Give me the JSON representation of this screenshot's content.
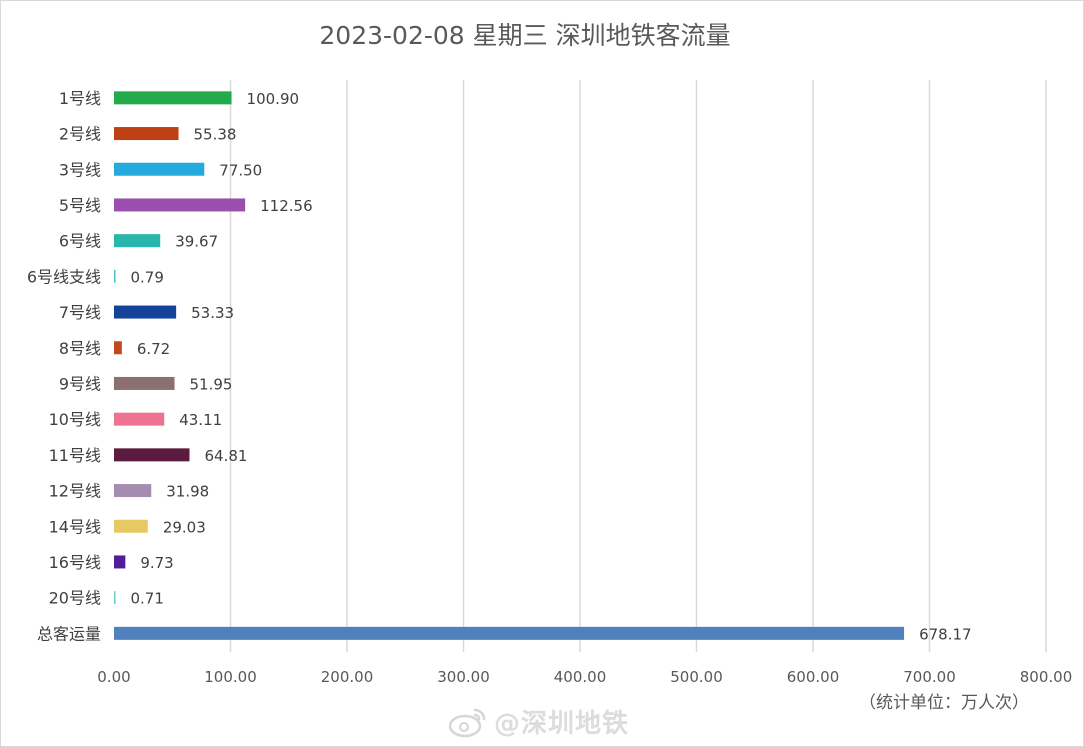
{
  "chart_data": {
    "type": "bar",
    "orientation": "horizontal",
    "title": "2023-02-08 星期三 深圳地铁客流量",
    "unit_note": "（统计单位：万人次）",
    "categories": [
      "1号线",
      "2号线",
      "3号线",
      "5号线",
      "6号线",
      "6号线支线",
      "7号线",
      "8号线",
      "9号线",
      "10号线",
      "11号线",
      "12号线",
      "14号线",
      "16号线",
      "20号线",
      "总客运量"
    ],
    "values": [
      100.9,
      55.38,
      77.5,
      112.56,
      39.67,
      0.79,
      53.33,
      6.72,
      51.95,
      43.11,
      64.81,
      31.98,
      29.03,
      9.73,
      0.71,
      678.17
    ],
    "value_labels": [
      "100.90",
      "55.38",
      "77.50",
      "112.56",
      "39.67",
      "0.79",
      "53.33",
      "6.72",
      "51.95",
      "43.11",
      "64.81",
      "31.98",
      "29.03",
      "9.73",
      "0.71",
      "678.17"
    ],
    "colors": [
      "#22ab4a",
      "#be4116",
      "#25aade",
      "#9a4fae",
      "#2ab7ab",
      "#4fc2d0",
      "#15439a",
      "#c04a1b",
      "#8b6f71",
      "#ee7392",
      "#5b1a3e",
      "#a58db2",
      "#e8c862",
      "#4e1e9b",
      "#6fc8d3",
      "#4f81bd"
    ],
    "xlim": [
      0,
      800
    ],
    "xticks": [
      0,
      100,
      200,
      300,
      400,
      500,
      600,
      700,
      800
    ],
    "xtick_labels": [
      "0.00",
      "100.00",
      "200.00",
      "300.00",
      "400.00",
      "500.00",
      "600.00",
      "700.00",
      "800.00"
    ],
    "grid": true,
    "legend": "none"
  },
  "watermark": {
    "logo_icon": "weibo-logo-icon",
    "text": "@深圳地铁"
  }
}
